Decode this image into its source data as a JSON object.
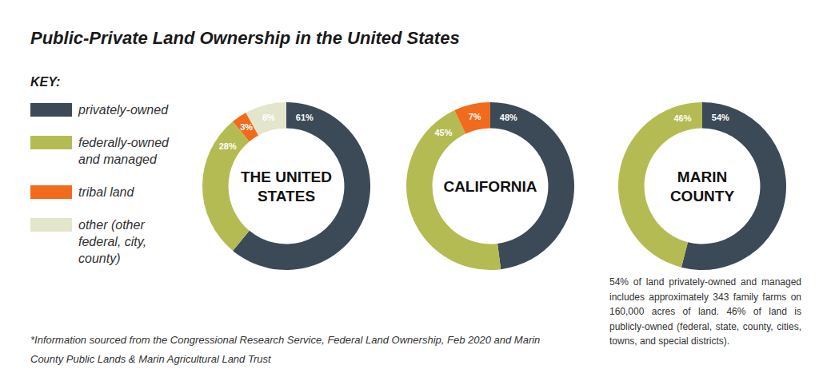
{
  "title": "Public-Private Land Ownership in the United States",
  "legend_title": "KEY:",
  "chart_data": [
    {
      "type": "donut",
      "title": "THE UNITED STATES",
      "categories": [
        "privately-owned",
        "federally-owned and managed",
        "tribal land",
        "other (other federal, city, county)"
      ],
      "values": [
        61,
        28,
        3,
        8
      ],
      "value_labels": [
        "61%",
        "28%",
        "3%",
        "8%"
      ],
      "colors": [
        "#3c4a58",
        "#b5bb53",
        "#f26a1b",
        "#e3e5cc"
      ],
      "data_labels": true
    },
    {
      "type": "donut",
      "title": "CALIFORNIA",
      "values": [
        48,
        45,
        7
      ],
      "value_labels": [
        "48%",
        "45%",
        "7%"
      ],
      "colors": [
        "#3c4a58",
        "#b5bb53",
        "#f26a1b"
      ],
      "data_labels": true
    },
    {
      "type": "donut",
      "title": "MARIN COUNTY",
      "values": [
        54,
        46
      ],
      "value_labels": [
        "54%",
        "46%"
      ],
      "colors": [
        "#3c4a58",
        "#b5bb53"
      ],
      "data_labels": true
    }
  ],
  "footnote": "*Information sourced from the Congressional Research Service, Federal Land Ownership, Feb 2020 and Marin County Public Lands & Marin Agricultural Land Trust",
  "annotation": "54% of land privately-owned and managed includes approximately 343 family farms on 160,000 acres of land. 46% of land is publicly-owned (federal, state, county, cities, towns, and special districts)."
}
